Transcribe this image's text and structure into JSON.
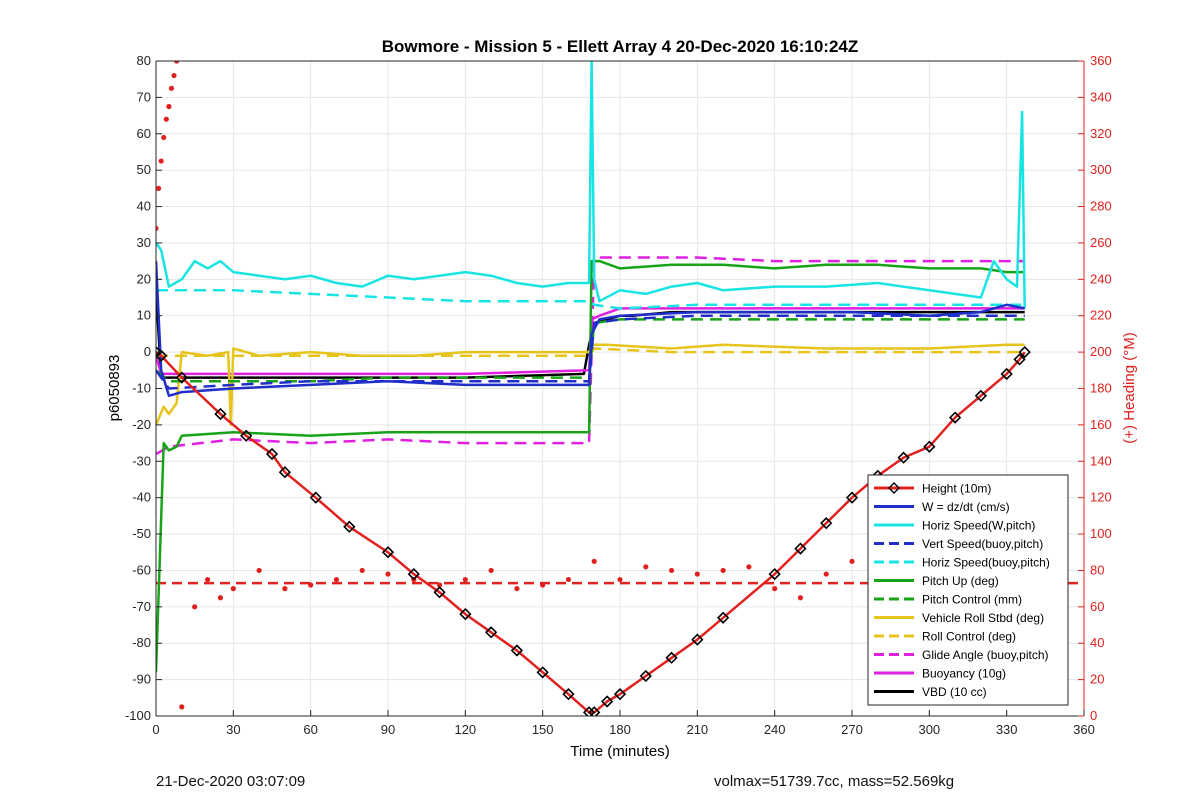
{
  "footer": {
    "left": "21-Dec-2020 03:07:09",
    "right": "volmax=51739.7cc, mass=52.569kg"
  },
  "chart_data": {
    "type": "line",
    "title": "Bowmore - Mission 5 - Ellett Array 4 20-Dec-2020 16:10:24Z",
    "xlabel": "Time (minutes)",
    "ylabel": "p6050893",
    "y2label": "(+) Heading (°M)",
    "xlim": [
      0,
      360
    ],
    "ylim": [
      -100,
      80
    ],
    "y2lim": [
      0,
      360
    ],
    "xticks": [
      0,
      30,
      60,
      90,
      120,
      150,
      180,
      210,
      240,
      270,
      300,
      330,
      360
    ],
    "yticks": [
      -100,
      -90,
      -80,
      -70,
      -60,
      -50,
      -40,
      -30,
      -20,
      -10,
      0,
      10,
      20,
      30,
      40,
      50,
      60,
      70,
      80
    ],
    "y2ticks": [
      0,
      20,
      40,
      60,
      80,
      100,
      120,
      140,
      160,
      180,
      200,
      220,
      240,
      260,
      280,
      300,
      320,
      340,
      360
    ],
    "grid": true,
    "legend_position": "bottom-right",
    "colors": {
      "axis_right": "#e0211f",
      "grid": "#e6e6e6"
    },
    "series": [
      {
        "name": "Height (10m)",
        "color": "#e0211f",
        "style": "solid",
        "markers": "diamond",
        "x": [
          0,
          2,
          10,
          25,
          35,
          45,
          50,
          62,
          75,
          90,
          100,
          110,
          120,
          130,
          140,
          150,
          160,
          168,
          170,
          175,
          180,
          190,
          200,
          210,
          220,
          240,
          250,
          260,
          270,
          280,
          290,
          300,
          310,
          320,
          330,
          335,
          337
        ],
        "y": [
          0,
          -1,
          -7,
          -17,
          -23,
          -28,
          -33,
          -40,
          -48,
          -55,
          -61,
          -66,
          -72,
          -77,
          -82,
          -88,
          -94,
          -99,
          -99,
          -96,
          -94,
          -89,
          -84,
          -79,
          -73,
          -61,
          -54,
          -47,
          -40,
          -34,
          -29,
          -26,
          -18,
          -12,
          -6,
          -2,
          0
        ]
      },
      {
        "name": "W = dz/dt (cm/s)",
        "color": "#1f2fc8",
        "style": "solid",
        "x": [
          0,
          2,
          5,
          10,
          30,
          60,
          90,
          120,
          150,
          168,
          169,
          172,
          180,
          210,
          240,
          270,
          300,
          320,
          330,
          337
        ],
        "y": [
          25,
          -5,
          -12,
          -11,
          -10,
          -9,
          -8,
          -9,
          -9,
          -9,
          5,
          9,
          10,
          11,
          11,
          11,
          10,
          11,
          13,
          12
        ]
      },
      {
        "name": "Horiz Speed(W,pitch)",
        "color": "#18e4e4",
        "style": "solid",
        "x": [
          0,
          2,
          5,
          10,
          15,
          20,
          25,
          30,
          40,
          50,
          60,
          70,
          80,
          90,
          100,
          110,
          120,
          130,
          140,
          150,
          160,
          168,
          169,
          170,
          172,
          180,
          190,
          200,
          210,
          220,
          240,
          260,
          280,
          300,
          320,
          325,
          330,
          334,
          336,
          337
        ],
        "y": [
          30,
          28,
          18,
          20,
          25,
          23,
          25,
          22,
          21,
          20,
          21,
          19,
          18,
          21,
          20,
          21,
          22,
          21,
          19,
          18,
          19,
          19,
          80,
          20,
          14,
          17,
          16,
          18,
          19,
          17,
          18,
          18,
          19,
          17,
          15,
          25,
          20,
          18,
          66,
          12
        ]
      },
      {
        "name": "Vert Speed(buoy,pitch)",
        "color": "#1f2fc8",
        "style": "dashed",
        "x": [
          0,
          5,
          30,
          60,
          90,
          120,
          150,
          168,
          170,
          180,
          210,
          240,
          270,
          300,
          330,
          337
        ],
        "y": [
          -5,
          -10,
          -9,
          -8,
          -8,
          -8,
          -8,
          -8,
          8,
          9,
          10,
          10,
          10,
          10,
          10,
          10
        ]
      },
      {
        "name": "Horiz Speed(buoy,pitch)",
        "color": "#18e4e4",
        "style": "dashed",
        "x": [
          0,
          5,
          30,
          60,
          90,
          120,
          150,
          168,
          170,
          180,
          210,
          240,
          270,
          300,
          330,
          337
        ],
        "y": [
          17,
          17,
          17,
          16,
          15,
          14,
          14,
          14,
          13,
          12,
          13,
          13,
          13,
          13,
          13,
          13
        ]
      },
      {
        "name": "Pitch Up (deg)",
        "color": "#19a319",
        "style": "solid",
        "x": [
          0,
          3,
          5,
          8,
          10,
          30,
          60,
          90,
          120,
          150,
          168,
          169,
          172,
          180,
          200,
          220,
          240,
          260,
          280,
          300,
          320,
          330,
          337
        ],
        "y": [
          -88,
          -25,
          -27,
          -26,
          -23,
          -22,
          -23,
          -22,
          -22,
          -22,
          -22,
          25,
          25,
          23,
          24,
          24,
          23,
          24,
          24,
          23,
          23,
          22,
          22
        ]
      },
      {
        "name": "Pitch Control (mm)",
        "color": "#19a319",
        "style": "dashed",
        "x": [
          0,
          5,
          30,
          60,
          90,
          120,
          150,
          168,
          170,
          180,
          210,
          240,
          270,
          300,
          330,
          337
        ],
        "y": [
          -5,
          -8,
          -8,
          -8,
          -7,
          -7,
          -7,
          -7,
          8,
          9,
          9,
          9,
          9,
          9,
          9,
          9
        ]
      },
      {
        "name": "Vehicle Roll Stbd (deg)",
        "color": "#e6c41c",
        "style": "solid",
        "x": [
          0,
          3,
          5,
          8,
          10,
          20,
          28,
          29,
          30,
          40,
          60,
          80,
          100,
          120,
          140,
          160,
          168,
          169,
          175,
          200,
          220,
          260,
          300,
          330,
          337
        ],
        "y": [
          -20,
          -15,
          -17,
          -14,
          0,
          -1,
          0,
          -20,
          1,
          -1,
          0,
          -1,
          -1,
          0,
          0,
          0,
          0,
          2,
          2,
          1,
          2,
          1,
          1,
          2,
          2
        ]
      },
      {
        "name": "Roll Control (deg)",
        "color": "#e6c41c",
        "style": "dashed",
        "x": [
          0,
          5,
          30,
          60,
          90,
          120,
          150,
          168,
          170,
          200,
          240,
          280,
          320,
          337
        ],
        "y": [
          -1,
          -1,
          -1,
          -1,
          -1,
          -1,
          -1,
          -1,
          1,
          0,
          0,
          0,
          0,
          0
        ]
      },
      {
        "name": "Glide Angle (buoy,pitch)",
        "color": "#e020e0",
        "style": "dashed",
        "x": [
          0,
          5,
          30,
          60,
          90,
          120,
          150,
          168,
          170,
          180,
          210,
          240,
          270,
          300,
          330,
          337
        ],
        "y": [
          -28,
          -26,
          -24,
          -25,
          -24,
          -25,
          -25,
          -25,
          26,
          26,
          26,
          25,
          25,
          25,
          25,
          25
        ]
      },
      {
        "name": "Buoyancy (10g)",
        "color": "#e020e0",
        "style": "solid",
        "x": [
          0,
          2,
          5,
          60,
          120,
          168,
          169,
          172,
          180,
          240,
          300,
          337
        ],
        "y": [
          -1,
          -6,
          -6,
          -6,
          -6,
          -5,
          9,
          10,
          12,
          12,
          12,
          12
        ]
      },
      {
        "name": "VBD (10 cc)",
        "color": "#000000",
        "style": "solid",
        "x": [
          0,
          2,
          5,
          60,
          120,
          166,
          168,
          170,
          175,
          180,
          185,
          200,
          240,
          300,
          337
        ],
        "y": [
          17,
          -7,
          -7,
          -7,
          -7,
          -6,
          2,
          8,
          9,
          10,
          10,
          11,
          11,
          11,
          11
        ]
      }
    ],
    "heading_series": {
      "name": "Heading (°M)",
      "color": "#e0211f",
      "axis": "right",
      "style": "markers",
      "x": [
        0,
        1,
        2,
        3,
        4,
        5,
        6,
        7,
        8,
        10,
        15,
        20,
        25,
        30,
        40,
        50,
        60,
        70,
        80,
        90,
        100,
        110,
        120,
        130,
        140,
        150,
        160,
        170,
        180,
        190,
        200,
        210,
        220,
        230,
        240,
        250,
        260,
        270,
        280,
        290,
        300,
        310,
        320,
        330,
        337
      ],
      "y": [
        268,
        290,
        305,
        318,
        328,
        335,
        345,
        352,
        360,
        5,
        60,
        75,
        65,
        70,
        80,
        70,
        72,
        75,
        80,
        78,
        75,
        72,
        75,
        80,
        70,
        72,
        75,
        85,
        75,
        82,
        80,
        78,
        80,
        82,
        70,
        65,
        78,
        85,
        70,
        75,
        80,
        60,
        70,
        78,
        80
      ]
    },
    "heading_reference": {
      "color": "#e0211f",
      "style": "dashed",
      "value": 73
    }
  }
}
